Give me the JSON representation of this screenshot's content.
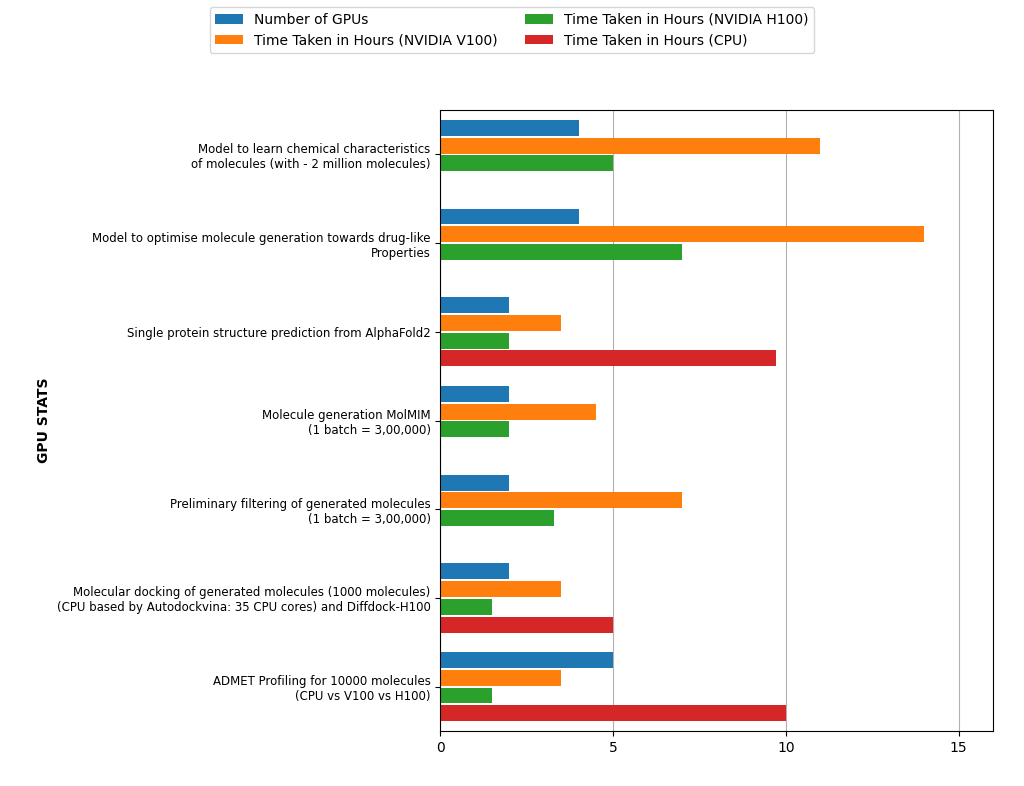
{
  "chart_data": {
    "type": "bar",
    "orientation": "horizontal",
    "ylabel": "GPU STATS",
    "categories": [
      "Model to learn chemical characteristics\nof molecules (with - 2 million molecules)",
      "Model to optimise molecule generation towards drug-like\nProperties",
      "Single protein structure prediction from AlphaFold2",
      "Molecule generation MolMIM\n(1 batch = 3,00,000)",
      "Preliminary filtering of generated molecules\n(1 batch = 3,00,000)",
      "Molecular docking of generated molecules (1000 molecules)\n(CPU based by Autodockvina: 35 CPU cores) and Diffdock-H100",
      "ADMET Profiling for 10000 molecules\n(CPU vs V100 vs H100)"
    ],
    "series": [
      {
        "name": "Number of GPUs",
        "values": [
          4.0,
          4.0,
          2.0,
          2.0,
          2.0,
          2.0,
          5.0
        ]
      },
      {
        "name": "Time Taken in Hours (NVIDIA V100)",
        "values": [
          11.0,
          14.0,
          3.5,
          4.5,
          7.0,
          3.5,
          3.5
        ]
      },
      {
        "name": "Time Taken in Hours (NVIDIA H100)",
        "values": [
          5.0,
          7.0,
          2.0,
          2.0,
          3.3,
          1.5,
          1.5
        ]
      },
      {
        "name": "Time Taken in Hours (CPU)",
        "values": [
          null,
          null,
          9.7,
          null,
          null,
          5.0,
          10.0
        ]
      }
    ],
    "xlim": [
      0,
      16
    ],
    "xticks": [
      0,
      5,
      10,
      15
    ],
    "grid": true,
    "legend": "upper center"
  }
}
